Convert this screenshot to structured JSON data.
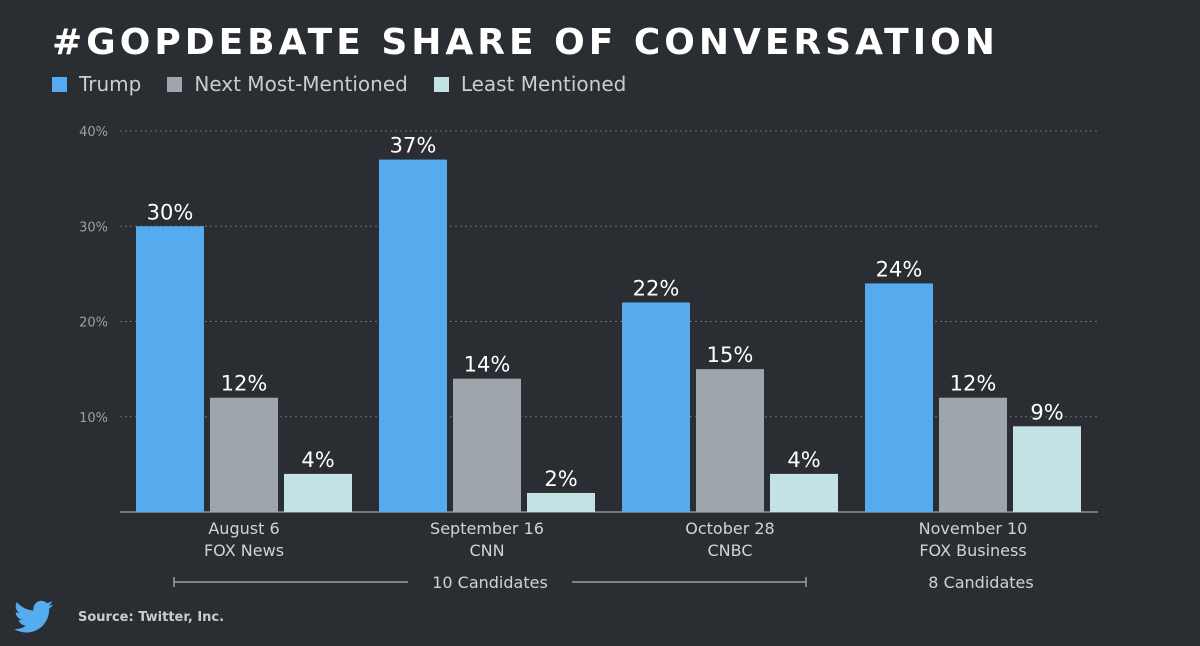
{
  "title": "#GOPDEBATE SHARE OF CONVERSATION",
  "colors": {
    "background": "#2a2d31",
    "trump": "#55abee",
    "next": "#9ea5ad",
    "least": "#c2e2e4",
    "axis_text": "#9aa0a6",
    "grid": "#6a6f75",
    "twitter_blue": "#55acee"
  },
  "legend": [
    {
      "label": "Trump",
      "color": "#55abee"
    },
    {
      "label": "Next Most-Mentioned",
      "color": "#9ea5ad"
    },
    {
      "label": "Least Mentioned",
      "color": "#c2e2e4"
    }
  ],
  "source": "Source: Twitter, Inc.",
  "chart_data": {
    "type": "bar",
    "title": "#GOPDEBATE SHARE OF CONVERSATION",
    "ylim": [
      0,
      40
    ],
    "yticks": [
      "40%",
      "30%",
      "20%",
      "10%"
    ],
    "ytick_values": [
      40,
      30,
      20,
      10
    ],
    "grid": true,
    "legend_position": "top-left",
    "categories": [
      {
        "line1": "August 6",
        "line2": "FOX News"
      },
      {
        "line1": "September 16",
        "line2": "CNN"
      },
      {
        "line1": "October 28",
        "line2": "CNBC"
      },
      {
        "line1": "November 10",
        "line2": "FOX Business"
      }
    ],
    "series": [
      {
        "name": "Trump",
        "values": [
          30,
          37,
          22,
          24
        ],
        "labels": [
          "30%",
          "37%",
          "22%",
          "24%"
        ]
      },
      {
        "name": "Next Most-Mentioned",
        "values": [
          12,
          14,
          15,
          12
        ],
        "labels": [
          "12%",
          "14%",
          "15%",
          "12%"
        ]
      },
      {
        "name": "Least Mentioned",
        "values": [
          4,
          2,
          4,
          9
        ],
        "labels": [
          "4%",
          "2%",
          "4%",
          "9%"
        ]
      }
    ],
    "annotations": [
      {
        "text": "10 Candidates",
        "span": [
          0,
          2
        ]
      },
      {
        "text": "8 Candidates",
        "span": [
          3,
          3
        ]
      }
    ]
  }
}
